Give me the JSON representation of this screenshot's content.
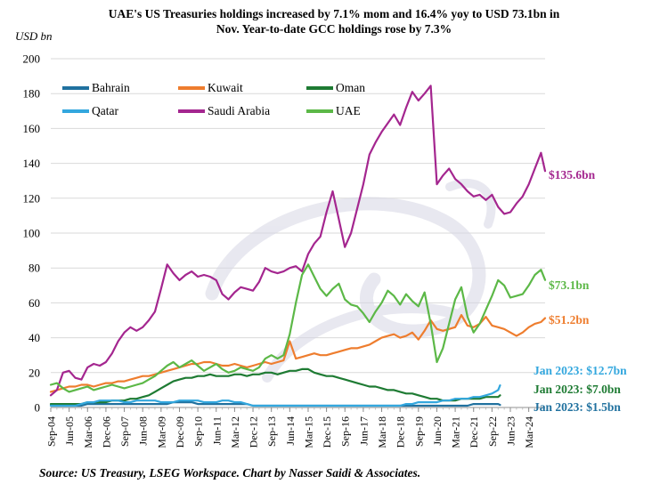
{
  "title": {
    "line1": "UAE's US Treasuries holdings increased by 7.1% mom and 16.4% yoy to USD 73.1bn in",
    "line2": "Nov. Year-to-date GCC holdings rose by 7.3%"
  },
  "y_axis": {
    "unit_label": "USD bn",
    "ticks": [
      0,
      20,
      40,
      60,
      80,
      100,
      120,
      140,
      160,
      180,
      200
    ],
    "min": 0,
    "max": 200
  },
  "x_axis": {
    "tick_labels": [
      "Sep-04",
      "Jun-05",
      "Mar-06",
      "Dec-06",
      "Sep-07",
      "Jun-08",
      "Mar-09",
      "Dec-09",
      "Sep-10",
      "Jun-11",
      "Mar-12",
      "Dec-12",
      "Sep-13",
      "Jun-14",
      "Mar-15",
      "Dec-15",
      "Sep-16",
      "Jun-17",
      "Mar-18",
      "Dec-18",
      "Sep-19",
      "Jun-20",
      "Mar-21",
      "Dec-21",
      "Sep-22",
      "Jun-23",
      "Mar-24"
    ],
    "label_every_months": 9,
    "minor_tick_months": 3
  },
  "legend": {
    "items": [
      {
        "label": "Bahrain",
        "color": "#20719f"
      },
      {
        "label": "Kuwait",
        "color": "#ee7d2e"
      },
      {
        "label": "Oman",
        "color": "#1e7b33"
      },
      {
        "label": "Qatar",
        "color": "#33a7de"
      },
      {
        "label": "Saudi Arabia",
        "color": "#a4268f"
      },
      {
        "label": "UAE",
        "color": "#5cb847"
      }
    ]
  },
  "watermark": {
    "icon": "arabic-calligraphy-watermark"
  },
  "chart_data": {
    "type": "line",
    "x_start": "Sep-2004",
    "x_end": "Nov-2024",
    "x_unit": "months since Sep-2004, quarterly sampling",
    "ylim": [
      0,
      200
    ],
    "grid": "horizontal",
    "legend_position": "top-left inside plot",
    "series": [
      {
        "id": "bahrain",
        "name": "Bahrain",
        "color": "#20719f",
        "step_months": 3,
        "last_month": 220,
        "last_label": "Jan 2023",
        "values": [
          1,
          1,
          1,
          1,
          1,
          1,
          2,
          2,
          2,
          2,
          2,
          2,
          2,
          2,
          2,
          2,
          2,
          2,
          2,
          2,
          3,
          3,
          3,
          3,
          2,
          2,
          2,
          2,
          2,
          2,
          2,
          2,
          2,
          1,
          1,
          1,
          1,
          1,
          1,
          1,
          1,
          1,
          1,
          1,
          1,
          1,
          1,
          1,
          1,
          1,
          1,
          1,
          1,
          1,
          1,
          1,
          1,
          1,
          1,
          1,
          1,
          1,
          1,
          1,
          1,
          1,
          1,
          1,
          1,
          2,
          2,
          2,
          2,
          2,
          1.5
        ]
      },
      {
        "id": "kuwait",
        "name": "Kuwait",
        "color": "#ee7d2e",
        "step_months": 3,
        "last_month": 242,
        "last_label": "Nov 2024",
        "values": [
          9,
          10,
          11,
          12,
          12,
          13,
          13,
          12,
          13,
          14,
          14,
          15,
          15,
          16,
          17,
          18,
          18,
          19,
          20,
          21,
          22,
          23,
          24,
          25,
          25,
          26,
          26,
          25,
          24,
          24,
          25,
          24,
          23,
          24,
          25,
          26,
          25,
          26,
          27,
          38,
          28,
          29,
          30,
          31,
          30,
          30,
          31,
          32,
          33,
          34,
          34,
          35,
          36,
          38,
          40,
          41,
          42,
          40,
          41,
          43,
          39,
          44,
          50,
          45,
          44,
          45,
          46,
          53,
          47,
          46,
          48,
          52,
          47,
          46,
          45,
          43,
          41,
          43,
          46,
          48,
          49,
          51.2
        ]
      },
      {
        "id": "oman",
        "name": "Oman",
        "color": "#1e7b33",
        "step_months": 3,
        "last_month": 220,
        "last_label": "Jan 2023",
        "values": [
          2,
          2,
          2,
          2,
          2,
          2,
          3,
          3,
          3,
          3,
          4,
          4,
          4,
          5,
          5,
          6,
          7,
          9,
          11,
          13,
          15,
          16,
          17,
          17,
          18,
          18,
          19,
          18,
          18,
          18,
          19,
          19,
          18,
          19,
          19,
          20,
          20,
          19,
          20,
          21,
          21,
          22,
          22,
          20,
          19,
          18,
          18,
          17,
          16,
          15,
          14,
          13,
          12,
          12,
          11,
          10,
          10,
          9,
          8,
          8,
          7,
          6,
          5,
          5,
          4,
          4,
          4,
          5,
          5,
          5,
          5,
          6,
          6,
          6,
          7.0
        ]
      },
      {
        "id": "qatar",
        "name": "Qatar",
        "color": "#33a7de",
        "step_months": 3,
        "last_month": 220,
        "last_label": "Jan 2023",
        "values": [
          1,
          1,
          1,
          1,
          1,
          2,
          3,
          3,
          4,
          4,
          4,
          4,
          3,
          3,
          4,
          4,
          4,
          4,
          3,
          3,
          3,
          4,
          4,
          4,
          4,
          3,
          3,
          3,
          4,
          4,
          3,
          3,
          2,
          1,
          1,
          1,
          1,
          1,
          1,
          1,
          1,
          1,
          1,
          1,
          1,
          1,
          1,
          1,
          1,
          1,
          1,
          1,
          1,
          1,
          1,
          1,
          1,
          1,
          2,
          2,
          3,
          3,
          3,
          3,
          4,
          4,
          5,
          5,
          5,
          6,
          6,
          7,
          8,
          10,
          12.7
        ]
      },
      {
        "id": "saudi-arabia",
        "name": "Saudi Arabia",
        "color": "#a4268f",
        "step_months": 3,
        "last_month": 242,
        "last_label": "Nov 2024",
        "values": [
          7,
          10,
          20,
          21,
          17,
          16,
          23,
          25,
          24,
          26,
          31,
          38,
          43,
          46,
          44,
          46,
          50,
          55,
          68,
          82,
          77,
          73,
          76,
          78,
          75,
          76,
          75,
          73,
          65,
          62,
          66,
          69,
          68,
          67,
          72,
          80,
          78,
          77,
          78,
          80,
          81,
          78,
          88,
          94,
          98,
          112,
          124,
          108,
          92,
          100,
          114,
          128,
          145,
          152,
          158,
          163,
          168,
          162,
          172,
          181,
          176,
          180,
          184.5,
          128,
          133,
          137,
          131,
          128,
          124,
          121,
          122,
          119,
          122,
          115,
          111,
          112,
          117,
          121,
          128,
          137,
          146,
          135.6
        ]
      },
      {
        "id": "uae",
        "name": "UAE",
        "color": "#5cb847",
        "step_months": 3,
        "last_month": 242,
        "last_label": "Nov 2024",
        "values": [
          13,
          14,
          11,
          9,
          10,
          11,
          12,
          10,
          11,
          12,
          13,
          12,
          11,
          12,
          13,
          14,
          16,
          18,
          21,
          24,
          26,
          23,
          25,
          27,
          24,
          21,
          23,
          25,
          22,
          20,
          21,
          23,
          22,
          21,
          23,
          28,
          30,
          28,
          30,
          42,
          60,
          76,
          82,
          75,
          68,
          64,
          68,
          71,
          62,
          59,
          58,
          54,
          49,
          55,
          60,
          67,
          64,
          59,
          65,
          61,
          58,
          66,
          48,
          26,
          34,
          48,
          62,
          69,
          52,
          43,
          48,
          56,
          64,
          73,
          70,
          63,
          64,
          65,
          70,
          76,
          79,
          73.1
        ]
      }
    ],
    "annotations": [
      {
        "text": "$135.6bn",
        "series": "Saudi Arabia",
        "color": "#a4268f",
        "anchor_value": 133,
        "position": "right-of-line-end"
      },
      {
        "text": "$73.1bn",
        "series": "UAE",
        "color": "#5cb847",
        "anchor_value": 70,
        "position": "right-of-line-end"
      },
      {
        "text": "$51.2bn",
        "series": "Kuwait",
        "color": "#ee7d2e",
        "anchor_value": 50,
        "position": "right-of-line-end"
      },
      {
        "text": "Jan 2023: $12.7bn",
        "series": "Qatar",
        "color": "#33a7de",
        "anchor_value": 21,
        "position": "bottom-right"
      },
      {
        "text": "Jan 2023: $7.0bn",
        "series": "Oman",
        "color": "#1e7b33",
        "anchor_value": 10,
        "position": "bottom-right"
      },
      {
        "text": "Jan 2023: $1.5bn",
        "series": "Bahrain",
        "color": "#20719f",
        "anchor_value": 0,
        "position": "bottom-right"
      }
    ]
  },
  "source": "Source: US Treasury, LSEG Workspace. Chart by Nasser Saidi & Associates."
}
